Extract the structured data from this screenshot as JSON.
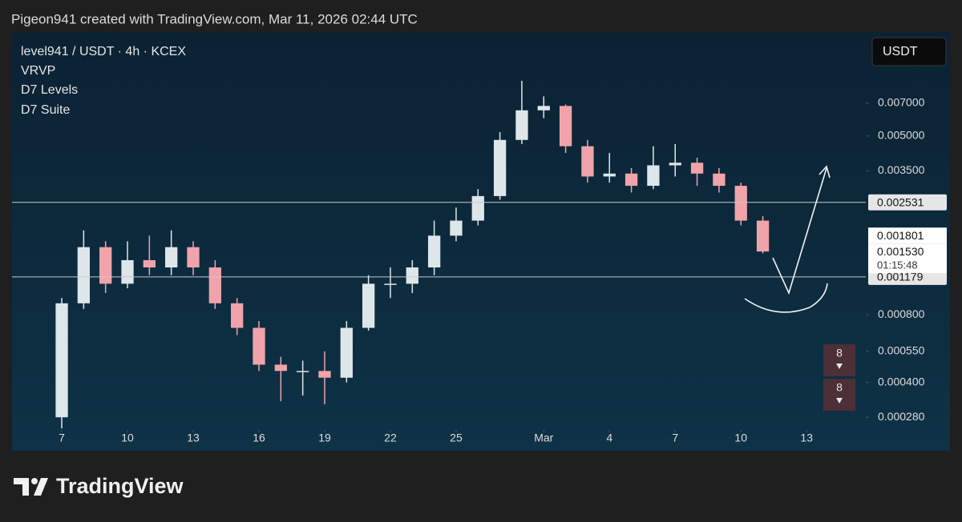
{
  "header": "Pigeon941 created with TradingView.com, Mar 11, 2026 02:44 UTC",
  "chart_data": {
    "type": "candlestick",
    "title": "level941 / USDT · 4h · KCEX",
    "indicators": [
      "VRVP",
      "D7 Levels",
      "D7 Suite"
    ],
    "currency": "USDT",
    "x": [
      0,
      1,
      2,
      3,
      4,
      5,
      6,
      7,
      8,
      9,
      10,
      11,
      12,
      13,
      14,
      15,
      16,
      17,
      18,
      19,
      20,
      21,
      22,
      23,
      24,
      25,
      26,
      27,
      28,
      29,
      30,
      31,
      32
    ],
    "open": [
      0.00028,
      0.0009,
      0.0016,
      0.0011,
      0.0014,
      0.0013,
      0.0016,
      0.0013,
      0.0009,
      0.0007,
      0.00048,
      0.00045,
      0.00045,
      0.00042,
      0.0007,
      0.0011,
      0.0011,
      0.0013,
      0.0018,
      0.0021,
      0.0027,
      0.0048,
      0.0065,
      0.0068,
      0.0045,
      0.0033,
      0.0034,
      0.003,
      0.0037,
      0.0038,
      0.0034,
      0.003,
      0.0021
    ],
    "high": [
      0.00095,
      0.0019,
      0.0017,
      0.0017,
      0.0018,
      0.0019,
      0.0017,
      0.0014,
      0.00095,
      0.00075,
      0.00052,
      0.0005,
      0.00055,
      0.00075,
      0.0012,
      0.0013,
      0.0014,
      0.0021,
      0.0024,
      0.0029,
      0.0052,
      0.0088,
      0.0075,
      0.0069,
      0.0048,
      0.0042,
      0.0036,
      0.0045,
      0.0046,
      0.004,
      0.0036,
      0.0031,
      0.0022
    ],
    "low": [
      0.00025,
      0.00085,
      0.001,
      0.00105,
      0.0012,
      0.0012,
      0.0012,
      0.00085,
      0.00065,
      0.00045,
      0.00033,
      0.00035,
      0.00032,
      0.0004,
      0.00068,
      0.00095,
      0.001,
      0.0012,
      0.0017,
      0.002,
      0.0026,
      0.0046,
      0.006,
      0.0042,
      0.0031,
      0.0031,
      0.0028,
      0.0029,
      0.0033,
      0.003,
      0.0028,
      0.002,
      0.0015
    ],
    "close": [
      0.0009,
      0.0016,
      0.0011,
      0.0014,
      0.0013,
      0.0016,
      0.0013,
      0.0009,
      0.0007,
      0.00048,
      0.00045,
      0.00045,
      0.00042,
      0.0007,
      0.0011,
      0.0011,
      0.0013,
      0.0018,
      0.0021,
      0.0027,
      0.0048,
      0.0065,
      0.0068,
      0.0045,
      0.0033,
      0.0034,
      0.003,
      0.0037,
      0.0038,
      0.0034,
      0.003,
      0.0021,
      0.00153
    ],
    "up_color": "#dde6e9",
    "down_color": "#f0a3aa",
    "xlim": [
      -2.27,
      36.7
    ],
    "xticks": [
      {
        "value": 0,
        "label": "7"
      },
      {
        "value": 3,
        "label": "10"
      },
      {
        "value": 6,
        "label": "13"
      },
      {
        "value": 9,
        "label": "16"
      },
      {
        "value": 12,
        "label": "19"
      },
      {
        "value": 15,
        "label": "22"
      },
      {
        "value": 18,
        "label": "25"
      },
      {
        "value": 22,
        "label": "Mar"
      },
      {
        "value": 25,
        "label": "4"
      },
      {
        "value": 28,
        "label": "7"
      },
      {
        "value": 31,
        "label": "10"
      },
      {
        "value": 34,
        "label": "13"
      }
    ],
    "ylim": [
      0.00025,
      0.0145
    ],
    "log_scale": true,
    "yticks": [
      {
        "value": 0.007,
        "label": "0.007000"
      },
      {
        "value": 0.005,
        "label": "0.005000"
      },
      {
        "value": 0.0035,
        "label": "0.003500"
      },
      {
        "value": 0.0008,
        "label": "0.000800"
      },
      {
        "value": 0.00055,
        "label": "0.000550"
      },
      {
        "value": 0.0004,
        "label": "0.000400"
      },
      {
        "value": 0.00028,
        "label": "0.000280"
      }
    ],
    "levels": [
      {
        "value": 0.002531,
        "label": "0.002531"
      },
      {
        "value": 0.001179,
        "label": "0.001179"
      }
    ],
    "price_labels": [
      {
        "value": 0.001801,
        "label": "0.001801"
      },
      {
        "value": 0.00153,
        "label": "0.001530"
      }
    ],
    "countdown": "01:15:48",
    "markers": [
      "8",
      "8"
    ]
  },
  "footer": "TradingView"
}
